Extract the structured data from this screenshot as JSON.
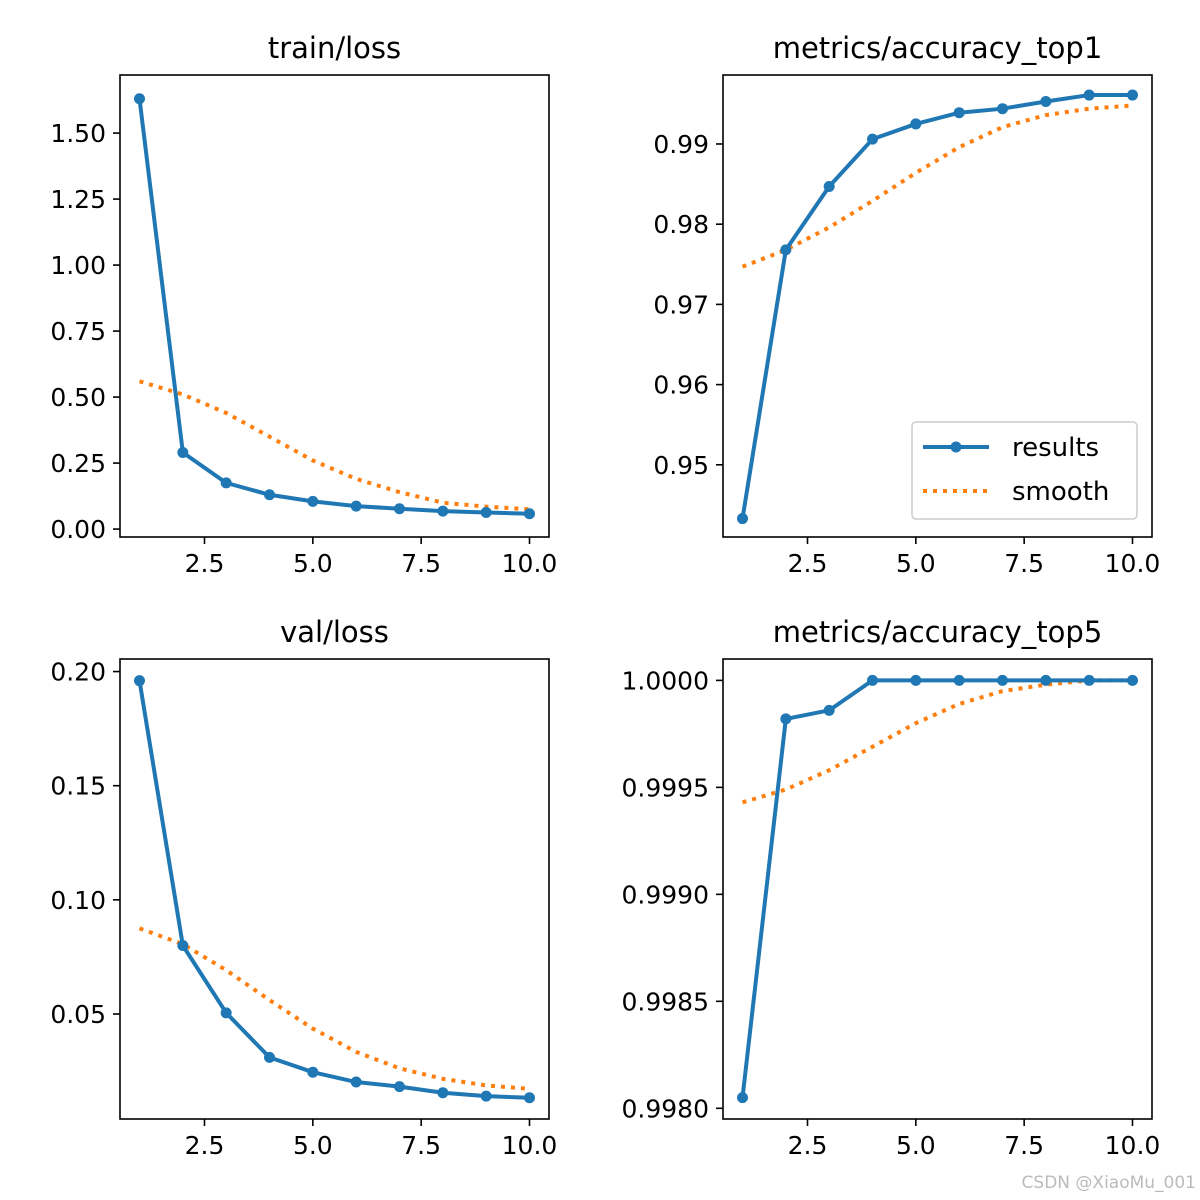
{
  "colors": {
    "results": "#1f77b4",
    "smooth": "#ff7f0e"
  },
  "watermark": "CSDN @XiaoMu_001",
  "legend": {
    "results_label": "results",
    "smooth_label": "smooth"
  },
  "chart_data": [
    {
      "type": "line",
      "title": "train/loss",
      "x": [
        1,
        2,
        3,
        4,
        5,
        6,
        7,
        8,
        9,
        10
      ],
      "xlim": [
        0.55,
        10.45
      ],
      "ylim": [
        -0.03,
        1.72
      ],
      "xticks": [
        2.5,
        5.0,
        7.5,
        10.0
      ],
      "xtick_labels": [
        "2.5",
        "5.0",
        "7.5",
        "10.0"
      ],
      "yticks": [
        0.0,
        0.25,
        0.5,
        0.75,
        1.0,
        1.25,
        1.5
      ],
      "ytick_labels": [
        "0.00",
        "0.25",
        "0.50",
        "0.75",
        "1.00",
        "1.25",
        "1.50"
      ],
      "legend": false,
      "series": [
        {
          "name": "results",
          "style": "solid-markers",
          "values": [
            1.63,
            0.29,
            0.175,
            0.13,
            0.105,
            0.087,
            0.077,
            0.068,
            0.063,
            0.058
          ]
        },
        {
          "name": "smooth",
          "style": "dotted",
          "values": [
            0.56,
            0.51,
            0.44,
            0.35,
            0.26,
            0.19,
            0.14,
            0.1,
            0.085,
            0.075
          ]
        }
      ]
    },
    {
      "type": "line",
      "title": "metrics/accuracy_top1",
      "x": [
        1,
        2,
        3,
        4,
        5,
        6,
        7,
        8,
        9,
        10
      ],
      "xlim": [
        0.55,
        10.45
      ],
      "ylim": [
        0.941,
        0.9986
      ],
      "xticks": [
        2.5,
        5.0,
        7.5,
        10.0
      ],
      "xtick_labels": [
        "2.5",
        "5.0",
        "7.5",
        "10.0"
      ],
      "yticks": [
        0.95,
        0.96,
        0.97,
        0.98,
        0.99
      ],
      "ytick_labels": [
        "0.95",
        "0.96",
        "0.97",
        "0.98",
        "0.99"
      ],
      "legend": true,
      "legend_loc": "lower-right",
      "series": [
        {
          "name": "results",
          "style": "solid-markers",
          "values": [
            0.9433,
            0.9768,
            0.9847,
            0.9906,
            0.9925,
            0.9939,
            0.9944,
            0.9953,
            0.9961,
            0.9961
          ]
        },
        {
          "name": "smooth",
          "style": "dotted",
          "values": [
            0.9747,
            0.9768,
            0.9796,
            0.9829,
            0.9864,
            0.9896,
            0.9921,
            0.9936,
            0.9944,
            0.9948
          ]
        }
      ]
    },
    {
      "type": "line",
      "title": "val/loss",
      "x": [
        1,
        2,
        3,
        4,
        5,
        6,
        7,
        8,
        9,
        10
      ],
      "xlim": [
        0.55,
        10.45
      ],
      "ylim": [
        0.004,
        0.2055
      ],
      "xticks": [
        2.5,
        5.0,
        7.5,
        10.0
      ],
      "xtick_labels": [
        "2.5",
        "5.0",
        "7.5",
        "10.0"
      ],
      "yticks": [
        0.05,
        0.1,
        0.15,
        0.2
      ],
      "ytick_labels": [
        "0.05",
        "0.10",
        "0.15",
        "0.20"
      ],
      "legend": false,
      "series": [
        {
          "name": "results",
          "style": "solid-markers",
          "values": [
            0.196,
            0.08,
            0.0505,
            0.031,
            0.0245,
            0.0202,
            0.0182,
            0.0155,
            0.014,
            0.0133
          ]
        },
        {
          "name": "smooth",
          "style": "dotted",
          "values": [
            0.0875,
            0.0806,
            0.0692,
            0.0561,
            0.0436,
            0.0334,
            0.0262,
            0.0216,
            0.0187,
            0.0172
          ]
        }
      ]
    },
    {
      "type": "line",
      "title": "metrics/accuracy_top5",
      "x": [
        1,
        2,
        3,
        4,
        5,
        6,
        7,
        8,
        9,
        10
      ],
      "xlim": [
        0.55,
        10.45
      ],
      "ylim": [
        0.99795,
        1.0001
      ],
      "xticks": [
        2.5,
        5.0,
        7.5,
        10.0
      ],
      "xtick_labels": [
        "2.5",
        "5.0",
        "7.5",
        "10.0"
      ],
      "yticks": [
        0.998,
        0.9985,
        0.999,
        0.9995,
        1.0
      ],
      "ytick_labels": [
        "0.9980",
        "0.9985",
        "0.9990",
        "0.9995",
        "1.0000"
      ],
      "legend": false,
      "series": [
        {
          "name": "results",
          "style": "solid-markers",
          "values": [
            0.99805,
            0.99982,
            0.99986,
            1.0,
            1.0,
            1.0,
            1.0,
            1.0,
            1.0,
            1.0
          ]
        },
        {
          "name": "smooth",
          "style": "dotted",
          "values": [
            0.99943,
            0.99949,
            0.99958,
            0.99969,
            0.9998,
            0.99989,
            0.99995,
            0.99998,
            1.0,
            1.0
          ]
        }
      ]
    }
  ]
}
